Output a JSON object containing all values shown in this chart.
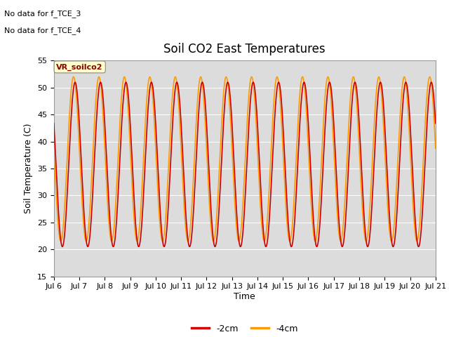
{
  "title": "Soil CO2 East Temperatures",
  "ylabel": "Soil Temperature (C)",
  "xlabel": "Time",
  "no_data_text_1": "No data for f_TCE_3",
  "no_data_text_2": "No data for f_TCE_4",
  "vr_label": "VR_soilco2",
  "xlim_days": [
    6,
    21
  ],
  "ylim": [
    15,
    55
  ],
  "yticks": [
    15,
    20,
    25,
    30,
    35,
    40,
    45,
    50,
    55
  ],
  "xtick_days": [
    6,
    7,
    8,
    9,
    10,
    11,
    12,
    13,
    14,
    15,
    16,
    17,
    18,
    19,
    20,
    21
  ],
  "color_2cm": "#cc0000",
  "color_4cm": "#ff9900",
  "line_width": 1.2,
  "bg_color": "#dcdcdc",
  "period_hours": 24,
  "t_min_2cm": 20.5,
  "t_max_2cm": 51.0,
  "t_min_4cm": 21.5,
  "t_max_4cm": 52.0,
  "phase_lead_4cm_hours": 1.5,
  "legend_2cm": "-2cm",
  "legend_4cm": "-4cm",
  "figsize": [
    6.4,
    4.8
  ],
  "dpi": 100
}
